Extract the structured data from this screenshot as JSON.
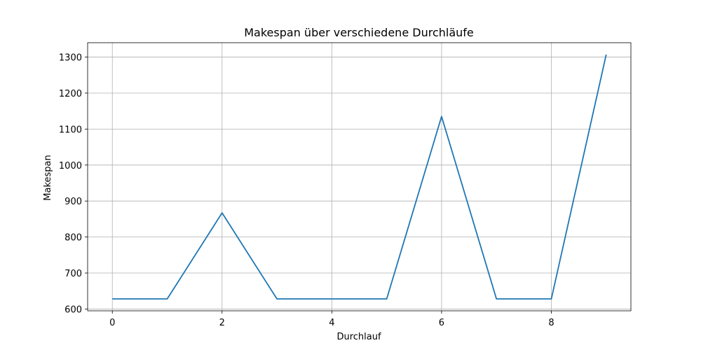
{
  "chart_data": {
    "type": "line",
    "title": "Makespan über verschiedene Durchläufe",
    "xlabel": "Durchlauf",
    "ylabel": "Makespan",
    "x": [
      0,
      1,
      2,
      3,
      4,
      5,
      6,
      7,
      8,
      9
    ],
    "series": [
      {
        "values": [
          628,
          628,
          867,
          628,
          628,
          628,
          1135,
          628,
          628,
          1307
        ],
        "color": "#1f77b4"
      }
    ],
    "xlim": [
      -0.45,
      9.45
    ],
    "ylim": [
      595,
      1340
    ],
    "xticks": [
      0,
      2,
      4,
      6,
      8
    ],
    "yticks": [
      600,
      700,
      800,
      900,
      1000,
      1100,
      1200,
      1300
    ],
    "grid": true
  }
}
